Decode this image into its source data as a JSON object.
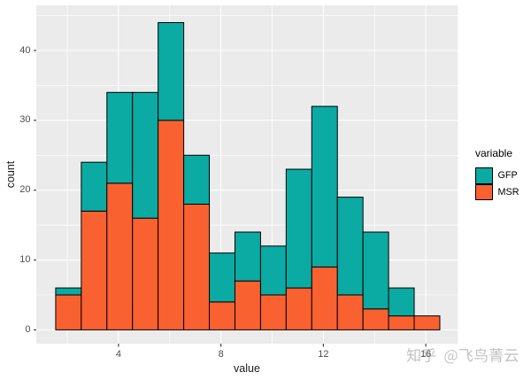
{
  "chart_data": {
    "type": "bar",
    "subtype": "stacked-histogram",
    "title": "",
    "xlabel": "value",
    "ylabel": "count",
    "bin_start": 1.5475,
    "bin_width": 1,
    "categories_note": "15 histogram bins of width 1 starting at bin_start",
    "series": [
      {
        "name": "GFP",
        "color": "#0BAAA3",
        "values": [
          1,
          7,
          13,
          18,
          14,
          7,
          7,
          7,
          7,
          17,
          23,
          14,
          11,
          4,
          0
        ]
      },
      {
        "name": "MSR",
        "color": "#FA6130",
        "values": [
          5,
          17,
          21,
          16,
          30,
          18,
          4,
          7,
          5,
          6,
          9,
          5,
          3,
          2,
          2
        ]
      }
    ],
    "stack_order_bottom_to_top": [
      "MSR",
      "GFP"
    ],
    "totals": [
      6,
      24,
      34,
      34,
      44,
      25,
      11,
      14,
      12,
      23,
      32,
      19,
      14,
      6,
      2
    ],
    "x_ticks": [
      4,
      8,
      12,
      16
    ],
    "x_minor_gridlines": [
      2,
      6,
      10,
      14
    ],
    "y_ticks": [
      0,
      10,
      20,
      30,
      40
    ],
    "y_minor_gridlines": [
      5,
      15,
      25,
      35,
      45
    ],
    "x_range": [
      0.79,
      17.25
    ],
    "y_range": [
      -1.98,
      46.47
    ],
    "grid": true,
    "legend_position": "right"
  },
  "legend": {
    "title": "variable"
  },
  "watermark": {
    "text": "知乎 @飞鸟菁云",
    "color": "rgba(120,120,120,0.45)"
  },
  "style": {
    "background": "#FFFFFF",
    "panel_background": "#EBEBEB",
    "gridline_color": "#FFFFFF",
    "bar_outline_color": "#000000",
    "tick_mark_color": "#333333",
    "tick_label_color": "#4D4D4D",
    "axis_title_color": "#1A1A1A"
  }
}
